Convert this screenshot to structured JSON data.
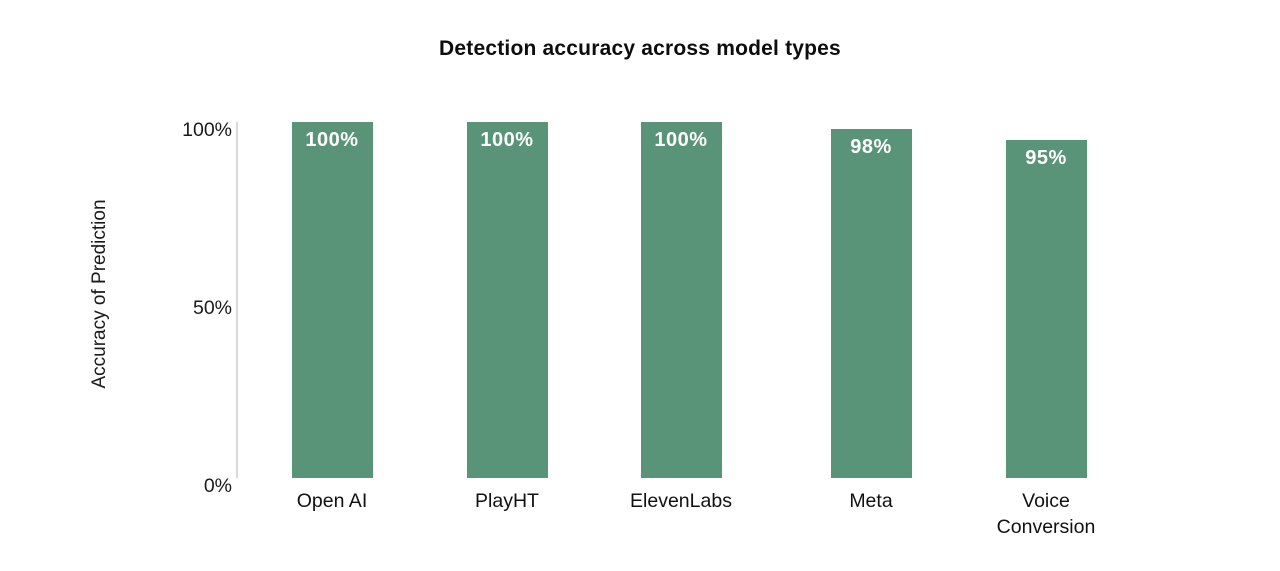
{
  "chart_data": {
    "type": "bar",
    "title": "Detection accuracy across model types",
    "xlabel": "",
    "ylabel": "Accuracy of Prediction",
    "categories": [
      "Open AI",
      "PlayHT",
      "ElevenLabs",
      "Meta",
      "Voice Conversion"
    ],
    "values": [
      100,
      100,
      100,
      98,
      95
    ],
    "bar_labels": [
      "100%",
      "100%",
      "100%",
      "98%",
      "95%"
    ],
    "yticks": [
      {
        "value": 100,
        "label": "100%"
      },
      {
        "value": 50,
        "label": "50%"
      },
      {
        "value": 0,
        "label": "0%"
      }
    ],
    "ylim": [
      0,
      100
    ],
    "grid": false,
    "legend": false,
    "colors": {
      "bar": "#5a9478",
      "bar_value_text": "#ffffff",
      "axis_line": "#d9d9d9",
      "title_text": "#0d0d0d",
      "label_text": "#1a1a1a",
      "background": "#ffffff"
    }
  }
}
